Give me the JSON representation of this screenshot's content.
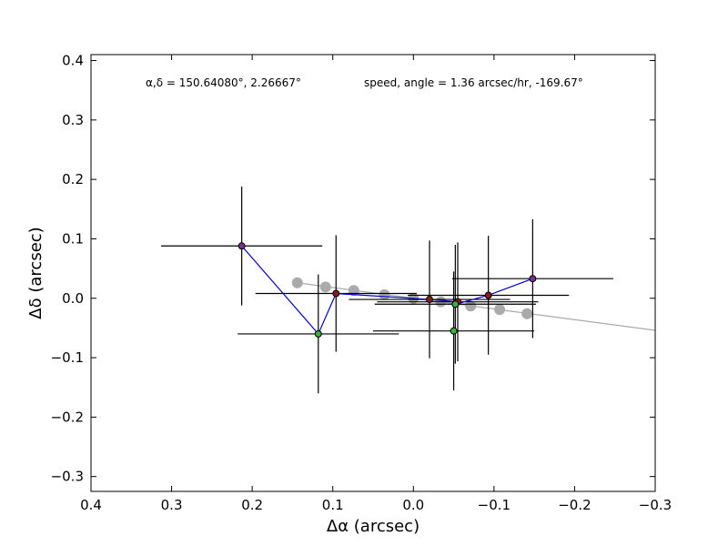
{
  "chart_data": {
    "type": "scatter",
    "xlabel": "Δα (arcsec)",
    "ylabel": "Δδ (arcsec)",
    "xlim": [
      0.4,
      -0.3
    ],
    "ylim": [
      -0.325,
      0.41
    ],
    "xticks": [
      0.4,
      0.3,
      0.2,
      0.1,
      0.0,
      -0.1,
      -0.2,
      -0.3
    ],
    "xtick_labels": [
      "0.4",
      "0.3",
      "0.2",
      "0.1",
      "0.0",
      "−0.1",
      "−0.2",
      "−0.3"
    ],
    "yticks": [
      0.4,
      0.3,
      0.2,
      0.1,
      0.0,
      -0.1,
      -0.2,
      -0.3
    ],
    "ytick_labels": [
      "0.4",
      "0.3",
      "0.2",
      "0.1",
      "0.0",
      "−0.1",
      "−0.2",
      "−0.3"
    ],
    "annotations": {
      "position": "α,δ = 150.64080°, 2.26667°",
      "motion": "speed, angle = 1.36 arcsec/hr, -169.67°"
    },
    "fit_line": {
      "color": "#aaaaaa",
      "x": [
        0.144,
        -0.3
      ],
      "y": [
        0.026,
        -0.054
      ]
    },
    "model_points": {
      "color": "#aaaaaa",
      "x": [
        0.144,
        0.109,
        0.074,
        0.036,
        0.0,
        -0.034,
        -0.071,
        -0.107,
        -0.141
      ],
      "y": [
        0.026,
        0.019,
        0.013,
        0.006,
        0.0,
        -0.006,
        -0.013,
        -0.019,
        -0.026
      ]
    },
    "trajectory": {
      "color": "#0000cc",
      "order": [
        0,
        6,
        1,
        2,
        3,
        7,
        4,
        5
      ]
    },
    "observations": [
      {
        "x": 0.213,
        "y": 0.088,
        "xerr": 0.1,
        "yerr": 0.1,
        "color": "#7a2f8f"
      },
      {
        "x": 0.096,
        "y": 0.008,
        "xerr": 0.1,
        "yerr": 0.098,
        "color": "#8b1a1a"
      },
      {
        "x": -0.02,
        "y": -0.002,
        "xerr": 0.1,
        "yerr": 0.099,
        "color": "#8b1a1a"
      },
      {
        "x": -0.055,
        "y": -0.006,
        "xerr": 0.1,
        "yerr": 0.1,
        "color": "#8b1a1a"
      },
      {
        "x": -0.093,
        "y": 0.005,
        "xerr": 0.1,
        "yerr": 0.1,
        "color": "#8b1a1a"
      },
      {
        "x": -0.148,
        "y": 0.033,
        "xerr": 0.1,
        "yerr": 0.1,
        "color": "#7a2f8f"
      },
      {
        "x": 0.118,
        "y": -0.06,
        "xerr": 0.1,
        "yerr": 0.1,
        "color": "#3cb043"
      },
      {
        "x": -0.052,
        "y": -0.01,
        "xerr": 0.1,
        "yerr": 0.1,
        "color": "#3cb043"
      },
      {
        "x": -0.05,
        "y": -0.055,
        "xerr": 0.1,
        "yerr": 0.1,
        "color": "#3cb043"
      }
    ],
    "grid": false,
    "legend": "none"
  }
}
